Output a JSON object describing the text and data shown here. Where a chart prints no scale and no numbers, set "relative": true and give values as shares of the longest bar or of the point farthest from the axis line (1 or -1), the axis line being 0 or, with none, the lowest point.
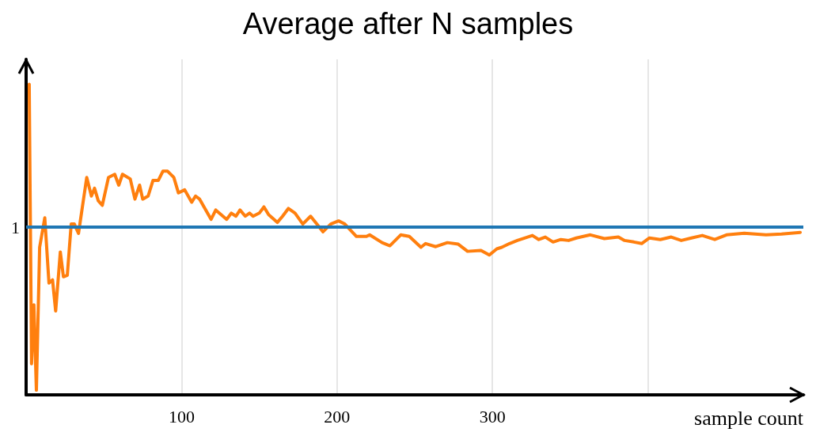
{
  "chart_data": {
    "type": "line",
    "title": "Average after N samples",
    "xlabel": "sample count",
    "relative": true,
    "x": [
      2,
      3.5,
      5,
      6.6,
      8.7,
      12,
      14.7,
      17,
      19,
      22,
      24,
      26.5,
      29,
      31,
      33.7,
      39,
      42,
      44,
      46.4,
      49,
      53,
      57,
      59.6,
      62,
      67,
      70,
      73,
      75,
      78.5,
      81.6,
      85,
      88,
      91,
      95,
      98,
      102,
      106.5,
      109,
      111.6,
      119,
      122,
      129,
      132,
      135,
      137.6,
      141,
      143.7,
      146,
      150,
      153,
      156,
      161.6,
      165,
      168.7,
      173,
      178,
      183,
      187,
      191,
      196,
      201,
      205,
      212.5,
      219,
      221,
      229,
      234,
      241,
      246.5,
      254,
      257,
      263.5,
      271,
      278,
      284,
      292.6,
      298,
      302.8,
      306,
      311,
      316,
      325.7,
      329.8,
      334,
      339,
      344,
      349,
      354,
      363,
      372,
      381,
      385,
      391,
      396,
      401,
      408,
      415,
      421.5,
      428,
      435,
      443,
      450.6,
      462,
      476,
      486,
      498
    ],
    "series": [
      {
        "color": "#ff7f0e",
        "values": [
          1.0,
          0.1,
          0.29,
          0.015,
          0.475,
          0.57,
          0.36,
          0.37,
          0.27,
          0.46,
          0.38,
          0.385,
          0.55,
          0.55,
          0.52,
          0.7,
          0.64,
          0.665,
          0.625,
          0.61,
          0.7,
          0.71,
          0.675,
          0.71,
          0.695,
          0.63,
          0.675,
          0.63,
          0.64,
          0.69,
          0.69,
          0.72,
          0.72,
          0.7,
          0.65,
          0.66,
          0.62,
          0.64,
          0.63,
          0.565,
          0.595,
          0.565,
          0.585,
          0.575,
          0.595,
          0.575,
          0.585,
          0.575,
          0.585,
          0.605,
          0.58,
          0.555,
          0.575,
          0.6,
          0.585,
          0.55,
          0.575,
          0.55,
          0.525,
          0.55,
          0.56,
          0.55,
          0.51,
          0.51,
          0.515,
          0.49,
          0.48,
          0.515,
          0.51,
          0.475,
          0.487,
          0.477,
          0.49,
          0.485,
          0.462,
          0.465,
          0.45,
          0.47,
          0.475,
          0.487,
          0.497,
          0.513,
          0.5,
          0.508,
          0.492,
          0.5,
          0.497,
          0.505,
          0.515,
          0.503,
          0.508,
          0.497,
          0.492,
          0.487,
          0.505,
          0.5,
          0.508,
          0.497,
          0.505,
          0.513,
          0.5,
          0.515,
          0.52,
          0.515,
          0.518,
          0.523
        ]
      }
    ],
    "xlim": [
      0,
      500
    ],
    "xticks": [
      100,
      200,
      300,
      {
        "value": 400,
        "label": null
      }
    ],
    "ref_lines": [
      {
        "axis": "y",
        "value": 0.538,
        "label": "1",
        "color": "#1f77b4"
      }
    ],
    "grid": "x",
    "marker": "none",
    "line_style": "solid"
  }
}
